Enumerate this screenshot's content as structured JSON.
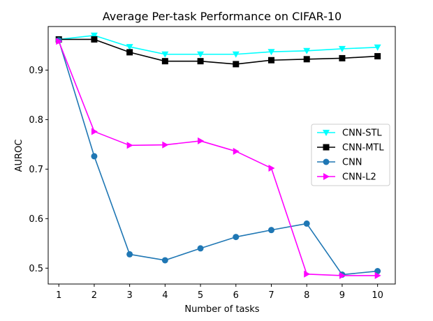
{
  "chart_data": {
    "type": "line",
    "title": "Average Per-task Performance on CIFAR-10",
    "xlabel": "Number of tasks",
    "ylabel": "AUROC",
    "x": [
      1,
      2,
      3,
      4,
      5,
      6,
      7,
      8,
      9,
      10
    ],
    "xlim": [
      0.7,
      10.5
    ],
    "ylim": [
      0.468,
      0.988
    ],
    "xticks": [
      "1",
      "2",
      "3",
      "4",
      "5",
      "6",
      "7",
      "8",
      "9",
      "10"
    ],
    "yticks": [
      0.5,
      0.6,
      0.7,
      0.8,
      0.9
    ],
    "ytick_labels": [
      "0.5",
      "0.6",
      "0.7",
      "0.8",
      "0.9"
    ],
    "grid": false,
    "legend_position": "center-right",
    "series": [
      {
        "name": "CNN-STL",
        "color": "#00ffff",
        "marker": "triangle-down",
        "values": [
          0.962,
          0.97,
          0.947,
          0.932,
          0.932,
          0.932,
          0.937,
          0.939,
          0.943,
          0.946
        ]
      },
      {
        "name": "CNN-MTL",
        "color": "#000000",
        "marker": "square",
        "values": [
          0.962,
          0.962,
          0.936,
          0.918,
          0.918,
          0.912,
          0.92,
          0.922,
          0.924,
          0.928
        ]
      },
      {
        "name": "CNN",
        "color": "#1f77b4",
        "marker": "circle",
        "values": [
          0.96,
          0.726,
          0.528,
          0.516,
          0.54,
          0.563,
          0.577,
          0.59,
          0.487,
          0.494
        ]
      },
      {
        "name": "CNN-L2",
        "color": "#ff00ff",
        "marker": "triangle-right",
        "values": [
          0.958,
          0.776,
          0.748,
          0.749,
          0.757,
          0.736,
          0.702,
          0.488,
          0.485,
          0.485
        ]
      }
    ]
  }
}
